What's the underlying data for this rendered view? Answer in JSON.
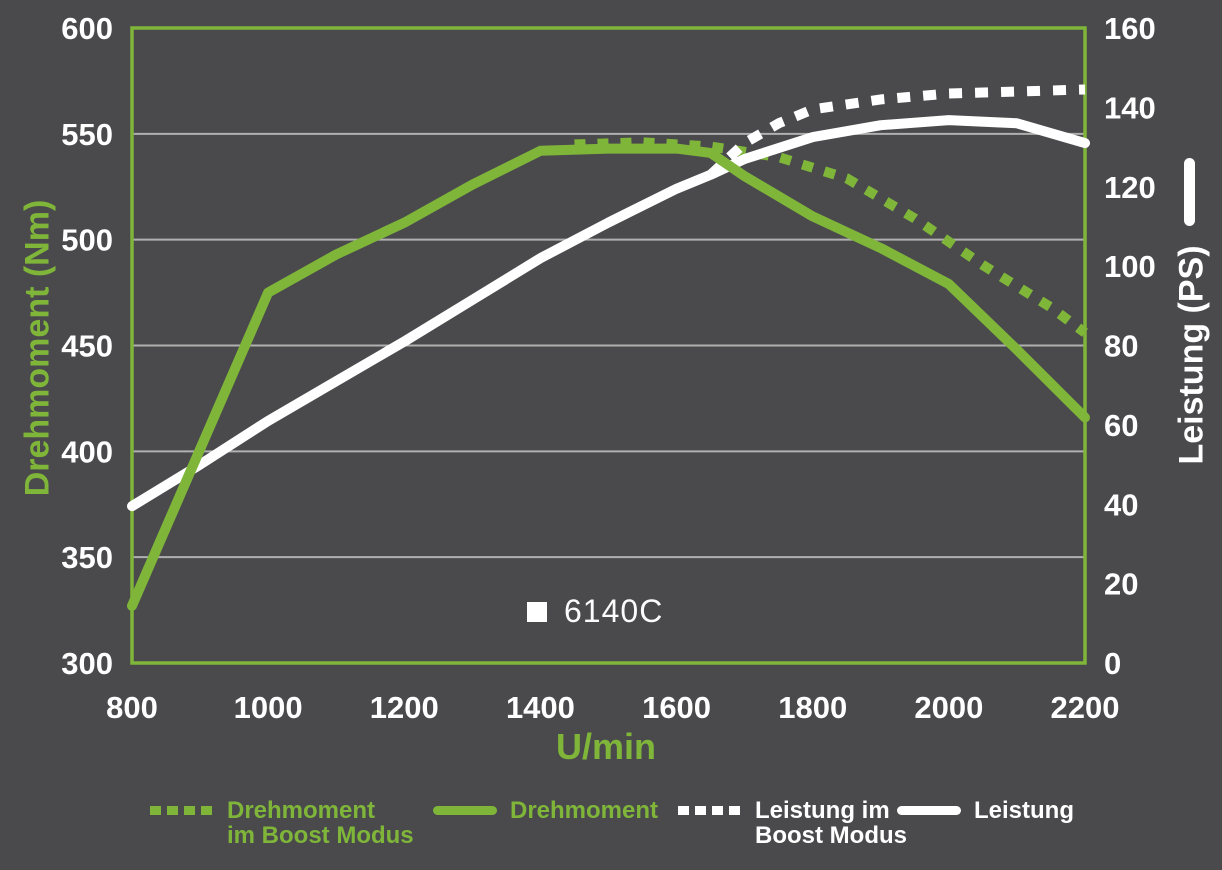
{
  "colors": {
    "background": "#4a4a4c",
    "green": "#7fb63a",
    "white": "#ffffff",
    "gridline": "#b0b0b0",
    "tick_text": "#ffffff"
  },
  "chart_data": {
    "type": "line",
    "title": "",
    "xlabel": "U/min",
    "ylabel_left": "Drehmoment (Nm)",
    "ylabel_right": "Leistung (PS)",
    "xlim": [
      800,
      2200
    ],
    "ylim_left": [
      300,
      600
    ],
    "ylim_right": [
      0,
      160
    ],
    "x_ticks": [
      800,
      1000,
      1200,
      1400,
      1600,
      1800,
      2000,
      2200
    ],
    "y_ticks_left": [
      600,
      550,
      500,
      450,
      400,
      350,
      300
    ],
    "y_ticks_right": [
      160,
      140,
      120,
      100,
      80,
      60,
      40,
      20,
      0
    ],
    "gridlines_left_axis_values": [
      550,
      500,
      450,
      400,
      350
    ],
    "grid": "horizontal-only",
    "legend_position": "bottom",
    "annotation": {
      "label": "6140C",
      "marker": "white-square",
      "x_rpm": 1390,
      "y_nm": 325
    },
    "series": [
      {
        "id": "drehmoment-boost",
        "name": "Drehmoment im Boost Modus",
        "axis": "left",
        "unit": "Nm",
        "color": "#7fb63a",
        "style": "dashed",
        "points": [
          [
            1450,
            545
          ],
          [
            1550,
            546
          ],
          [
            1650,
            544
          ],
          [
            1750,
            539
          ],
          [
            1850,
            529
          ],
          [
            1950,
            510
          ],
          [
            2050,
            488
          ],
          [
            2150,
            468
          ],
          [
            2200,
            456
          ]
        ]
      },
      {
        "id": "drehmoment",
        "name": "Drehmoment",
        "axis": "left",
        "unit": "Nm",
        "color": "#7fb63a",
        "style": "solid",
        "points": [
          [
            800,
            327
          ],
          [
            1000,
            475
          ],
          [
            1100,
            493
          ],
          [
            1200,
            508
          ],
          [
            1300,
            526
          ],
          [
            1400,
            542
          ],
          [
            1500,
            543
          ],
          [
            1600,
            543
          ],
          [
            1650,
            541
          ],
          [
            1700,
            530
          ],
          [
            1800,
            511
          ],
          [
            1900,
            496
          ],
          [
            2000,
            479
          ],
          [
            2100,
            448
          ],
          [
            2200,
            416
          ]
        ]
      },
      {
        "id": "leistung-boost",
        "name": "Leistung im Boost Modus",
        "axis": "right",
        "unit": "PS",
        "color": "#ffffff",
        "style": "dashed",
        "points": [
          [
            1650,
            123
          ],
          [
            1700,
            131
          ],
          [
            1750,
            136
          ],
          [
            1800,
            139.5
          ],
          [
            1900,
            142
          ],
          [
            2000,
            143.5
          ],
          [
            2100,
            144
          ],
          [
            2200,
            144.5
          ]
        ]
      },
      {
        "id": "leistung",
        "name": "Leistung",
        "axis": "right",
        "unit": "PS",
        "color": "#ffffff",
        "style": "solid",
        "points": [
          [
            800,
            39.5
          ],
          [
            900,
            50
          ],
          [
            1000,
            61
          ],
          [
            1100,
            71
          ],
          [
            1200,
            81
          ],
          [
            1300,
            91.5
          ],
          [
            1400,
            102
          ],
          [
            1500,
            111
          ],
          [
            1600,
            119.5
          ],
          [
            1650,
            123
          ],
          [
            1700,
            127
          ],
          [
            1800,
            132.5
          ],
          [
            1900,
            135.5
          ],
          [
            2000,
            136.8
          ],
          [
            2100,
            136
          ],
          [
            2200,
            131
          ]
        ]
      }
    ]
  },
  "legend": {
    "items": [
      {
        "label": "Drehmoment\nim Boost Modus",
        "swatch": "dashed",
        "color": "#7fb63a"
      },
      {
        "label": "Drehmoment",
        "swatch": "solid",
        "color": "#7fb63a"
      },
      {
        "label": "Leistung im\nBoost Modus",
        "swatch": "dashed",
        "color": "#ffffff"
      },
      {
        "label": "Leistung",
        "swatch": "solid",
        "color": "#ffffff"
      }
    ]
  }
}
